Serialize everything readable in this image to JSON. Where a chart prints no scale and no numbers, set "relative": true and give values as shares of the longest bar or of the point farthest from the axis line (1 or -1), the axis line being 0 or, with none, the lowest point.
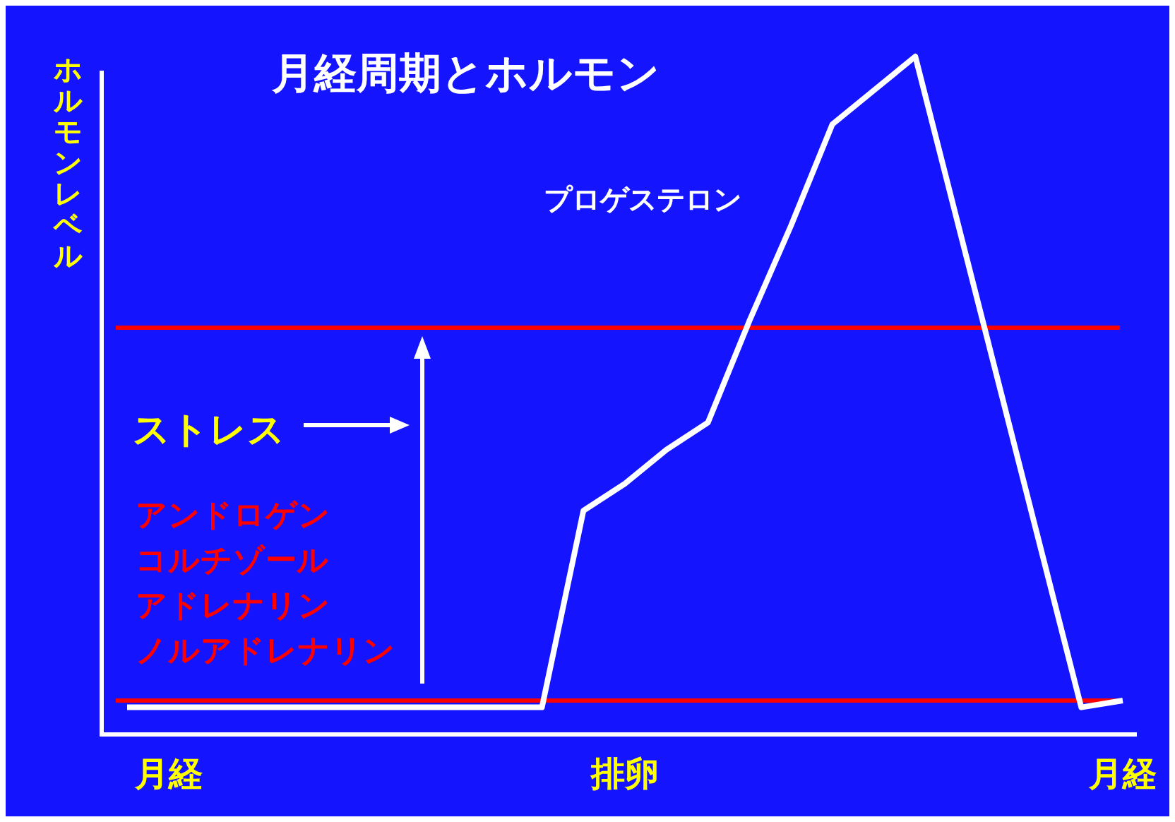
{
  "chart_data": {
    "type": "line",
    "relative": true,
    "title": "月経周期とホルモン",
    "ylabel": "ホルモンレベル",
    "categories": [
      null,
      "月経",
      null,
      null,
      null,
      null,
      null,
      null,
      null,
      null,
      null,
      null,
      "排卵",
      null,
      null,
      null,
      null,
      null,
      null,
      null,
      null,
      null,
      null,
      null,
      "月経"
    ],
    "series": [
      {
        "name": "プロゲステロン",
        "color": "#ffffff",
        "values": [
          0.04,
          0.04,
          0.04,
          0.04,
          0.04,
          0.04,
          0.04,
          0.04,
          0.04,
          0.04,
          0.04,
          0.33,
          0.37,
          0.42,
          0.46,
          0.61,
          0.75,
          0.9,
          0.95,
          1,
          0.76,
          0.52,
          0.28,
          0.04,
          0.05
        ]
      }
    ],
    "ref_lines": [
      {
        "axis": "y",
        "value": 0.6,
        "color": "#ff0000"
      },
      {
        "axis": "y",
        "value": 0.05,
        "color": "#ff0000"
      }
    ],
    "annotations": [
      "ストレス",
      "アンドロゲン",
      "コルチゾール",
      "アドレナリン",
      "ノルアドレナリン"
    ],
    "legend": false,
    "marker": "none",
    "line_style": "solid"
  }
}
